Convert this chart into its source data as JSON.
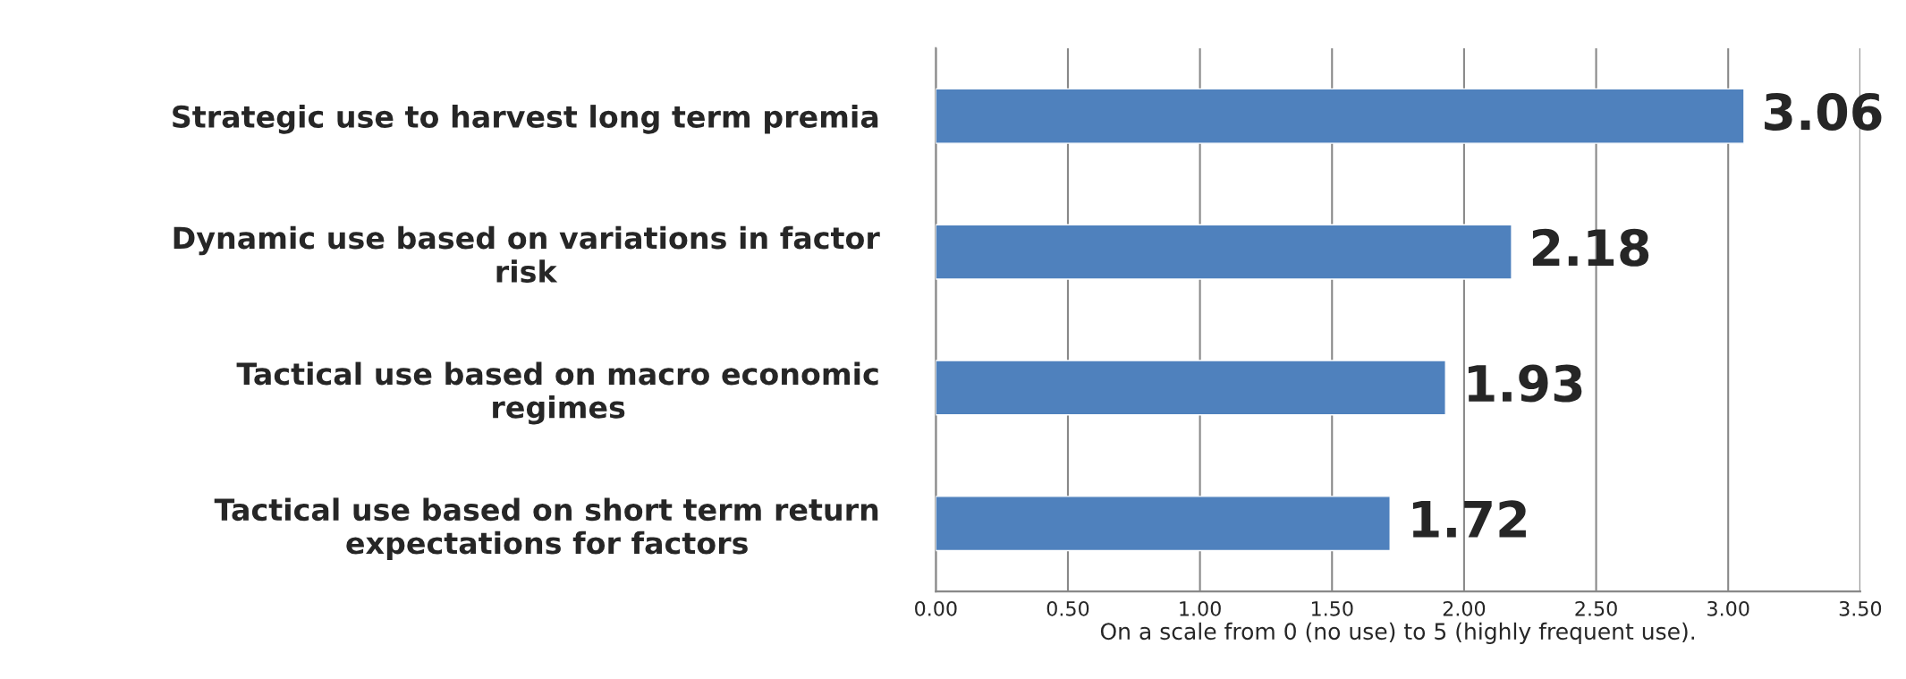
{
  "chart_data": {
    "type": "bar",
    "orientation": "horizontal",
    "categories": [
      "Strategic use to harvest long term premia",
      "Dynamic use based on variations in factor\nrisk",
      "Tactical use based on macro economic\nregimes",
      "Tactical use based on short term return\nexpectations for factors"
    ],
    "values": [
      3.06,
      2.18,
      1.93,
      1.72
    ],
    "color": "#4f81bd",
    "data_labels": true,
    "xlim": [
      0,
      3.5
    ],
    "xticks": [
      {
        "value": 0,
        "label": "0.00"
      },
      {
        "value": 0.5,
        "label": "0.50"
      },
      {
        "value": 1,
        "label": "1.00"
      },
      {
        "value": 1.5,
        "label": "1.50"
      },
      {
        "value": 2,
        "label": "2.00"
      },
      {
        "value": 2.5,
        "label": "2.50"
      },
      {
        "value": 3,
        "label": "3.00"
      },
      {
        "value": 3.5,
        "label": "3.50"
      }
    ],
    "xlabel": "On a scale from 0 (no use) to 5 (highly frequent use).",
    "grid": "x",
    "legend": false
  }
}
